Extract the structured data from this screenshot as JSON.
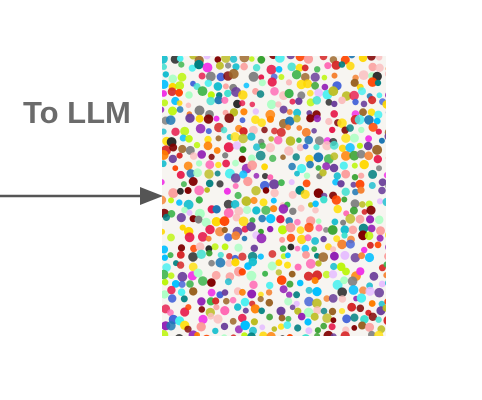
{
  "label": {
    "text": "To LLM"
  },
  "colors": {
    "label": "#6b6b6b",
    "arrow": "#555555",
    "canvas": "#f7f5f1",
    "dot_palette": [
      "#e6194b",
      "#f58231",
      "#ffe119",
      "#3cb44b",
      "#4363d8",
      "#911eb4",
      "#46f0f0",
      "#f032e6",
      "#bcf60c",
      "#fabebe",
      "#008080",
      "#e6beff",
      "#9a6324",
      "#800000",
      "#aaffc3",
      "#1f78b4",
      "#33a02c",
      "#fb9a99",
      "#ff7f00",
      "#6a3d9a",
      "#17becf",
      "#bcbd22",
      "#2b2b2b",
      "#7f7f7f",
      "#d62728",
      "#ff69b4",
      "#40e0d0",
      "#ffd700",
      "#00bfff",
      "#ff4500"
    ]
  },
  "image": {
    "description_icon": "dot-painting-image"
  }
}
